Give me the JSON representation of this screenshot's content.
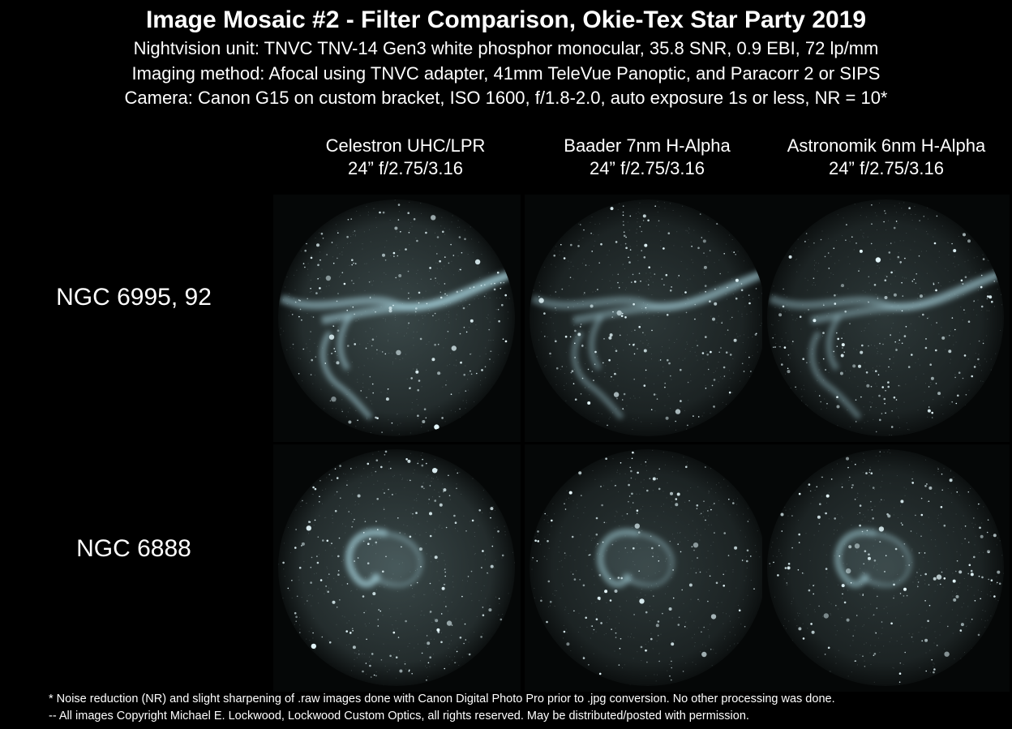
{
  "title": "Image Mosaic #2 - Filter Comparison, Okie-Tex Star Party 2019",
  "subtitle_lines": [
    "Nightvision unit:  TNVC TNV-14 Gen3 white phosphor monocular, 35.8 SNR, 0.9 EBI, 72 lp/mm",
    "Imaging method:  Afocal using TNVC adapter, 41mm TeleVue Panoptic, and Paracorr 2 or SIPS",
    "Camera:  Canon G15 on custom bracket, ISO 1600, f/1.8-2.0, auto exposure 1s or less, NR = 10*"
  ],
  "columns": [
    {
      "filter": "Celestron UHC/LPR",
      "scope": "24” f/2.75/3.16"
    },
    {
      "filter": "Baader 7nm H-Alpha",
      "scope": "24” f/2.75/3.16"
    },
    {
      "filter": "Astronomik 6nm H-Alpha",
      "scope": "24” f/2.75/3.16"
    }
  ],
  "rows": [
    {
      "label": "NGC 6995, 92",
      "object": "veil-nebula"
    },
    {
      "label": "NGC 6888",
      "object": "crescent-nebula"
    }
  ],
  "footer": [
    "*  Noise reduction (NR) and slight sharpening of .raw images done with Canon Digital Photo Pro prior to .jpg conversion.  No other processing was done.",
    "-- All images Copyright Michael E. Lockwood, Lockwood Custom Optics, all rights reserved.  May be distributed/posted with permission."
  ],
  "colors": {
    "background": "#000000",
    "text": "#ffffff",
    "field_glow": "#8fb0b2",
    "nebula": "#a9d6e0",
    "star": "#e8fbff"
  }
}
